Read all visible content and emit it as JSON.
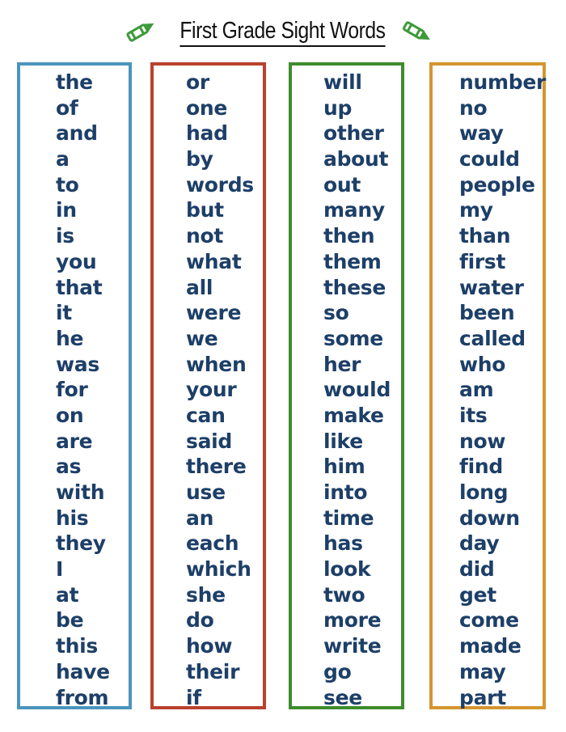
{
  "title": "First Grade Sight Words",
  "icons": {
    "left": "crayon-icon",
    "right": "crayon-icon",
    "crayon_color": "#3d9a3a"
  },
  "text_color": "#1d3f68",
  "columns": [
    {
      "color": "#4b95bd",
      "words": [
        "the",
        "of",
        "and",
        "a",
        "to",
        "in",
        "is",
        "you",
        "that",
        "it",
        "he",
        "was",
        "for",
        "on",
        "are",
        "as",
        "with",
        "his",
        "they",
        "I",
        "at",
        "be",
        "this",
        "have",
        "from"
      ]
    },
    {
      "color": "#b9412d",
      "words": [
        "or",
        "one",
        "had",
        "by",
        "words",
        "but",
        "not",
        "what",
        "all",
        "were",
        "we",
        "when",
        "your",
        "can",
        "said",
        "there",
        "use",
        "an",
        "each",
        "which",
        "she",
        "do",
        "how",
        "their",
        "if"
      ]
    },
    {
      "color": "#3e8c2d",
      "words": [
        "will",
        "up",
        "other",
        "about",
        "out",
        "many",
        "then",
        "them",
        "these",
        "so",
        "some",
        "her",
        "would",
        "make",
        "like",
        "him",
        "into",
        "time",
        "has",
        "look",
        "two",
        "more",
        "write",
        "go",
        "see"
      ]
    },
    {
      "color": "#d4962f",
      "words": [
        "number",
        "no",
        "way",
        "could",
        "people",
        "my",
        "than",
        "first",
        "water",
        "been",
        "called",
        "who",
        "am",
        "its",
        "now",
        "find",
        "long",
        "down",
        "day",
        "did",
        "get",
        "come",
        "made",
        "may",
        "part"
      ]
    }
  ]
}
